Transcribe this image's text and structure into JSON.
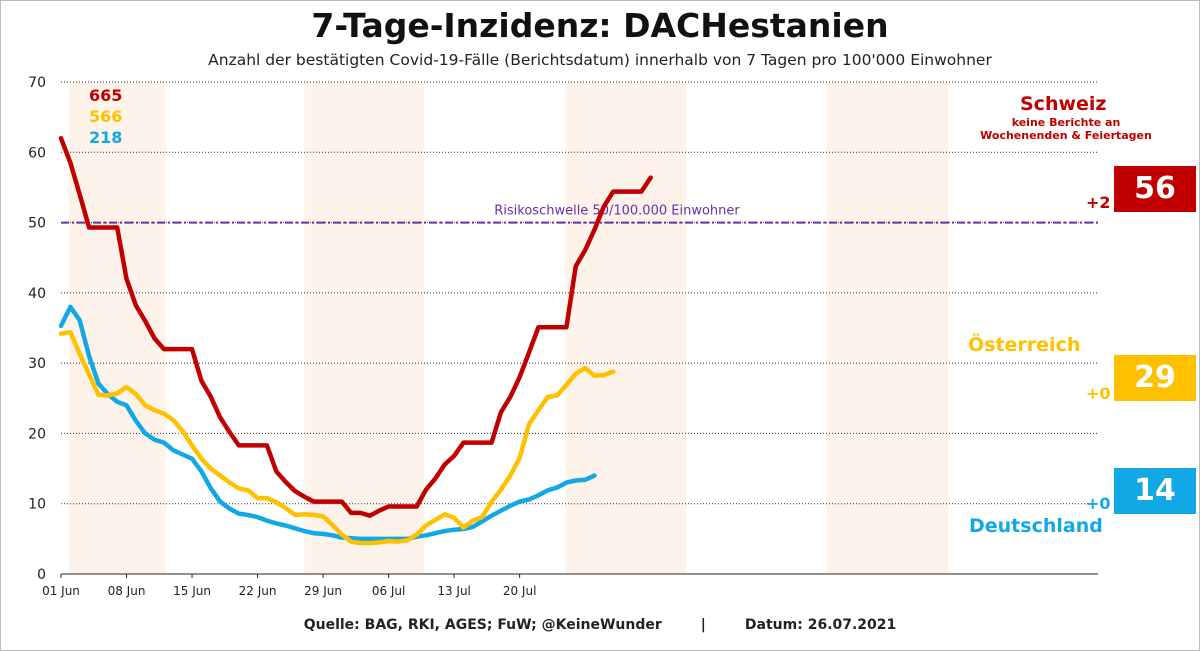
{
  "chart_data": {
    "type": "line",
    "title": "7-Tage-Inzidenz: DACHestanien",
    "subtitle": "Anzahl der bestätigten Covid-19-Fälle (Berichtsdatum) innerhalb von 7 Tagen pro 100'000 Einwohner",
    "ylim": [
      0,
      70
    ],
    "yticks": [
      0,
      10,
      20,
      30,
      40,
      50,
      60,
      70
    ],
    "xtick_labels": [
      "01 Jun",
      "08 Jun",
      "15 Jun",
      "22 Jun",
      "29 Jun",
      "06 Jul",
      "13 Jul",
      "20 Jul"
    ],
    "grid": "horizontal dotted",
    "threshold": {
      "value": 50,
      "label": "Risikoschwelle 50/100.000 Einwohner",
      "color": "#6a2fa8"
    },
    "weekend_shading": true,
    "series": [
      {
        "name": "Schweiz",
        "color": "#c00000",
        "peak": "665",
        "current": "56",
        "change": "+2",
        "note": [
          "keine Berichte an",
          "Wochenenden & Feiertagen"
        ],
        "values": [
          62,
          58.5,
          54,
          49.3,
          49.3,
          49.3,
          49.3,
          42,
          38.2,
          36,
          33.5,
          32,
          32,
          32,
          32,
          27.5,
          25.2,
          22.3,
          20.2,
          18.3,
          18.3,
          18.3,
          18.3,
          14.6,
          13.1,
          11.8,
          11,
          10.3,
          10.3,
          10.3,
          10.3,
          8.7,
          8.7,
          8.3,
          9,
          9.6,
          9.6,
          9.6,
          9.6,
          12,
          13.6,
          15.6,
          16.8,
          18.7,
          18.7,
          18.7,
          18.7,
          23,
          25.2,
          28,
          31.5,
          35.1,
          35.1,
          35.1,
          35.1,
          43.8,
          46.1,
          49,
          52.3,
          54.4,
          54.4,
          54.4,
          54.4,
          56.4
        ]
      },
      {
        "name": "Österreich",
        "color": "#ffc000",
        "peak": "566",
        "current": "29",
        "change": "+0",
        "values": [
          34.2,
          34.4,
          31.3,
          28.4,
          25.5,
          25.4,
          25.7,
          26.6,
          25.6,
          24,
          23.3,
          22.8,
          21.9,
          20.3,
          18.3,
          16.4,
          15,
          14,
          13,
          12.2,
          11.9,
          10.8,
          10.8,
          10.2,
          9.4,
          8.4,
          8.5,
          8.4,
          8.2,
          7,
          5.6,
          4.6,
          4.4,
          4.4,
          4.5,
          4.7,
          4.6,
          4.8,
          5.6,
          6.9,
          7.7,
          8.5,
          8,
          6.6,
          7.6,
          8.1,
          10.3,
          12,
          14,
          16.5,
          21.3,
          23.3,
          25.2,
          25.4,
          26.9,
          28.5,
          29.3,
          28.2,
          28.3,
          28.8
        ]
      },
      {
        "name": "Deutschland",
        "color": "#12a8e6",
        "peak": "218",
        "current": "14",
        "change": "+0",
        "values": [
          35.3,
          38,
          36.1,
          31,
          27.1,
          25.6,
          24.5,
          24,
          21.8,
          20,
          19.1,
          18.7,
          17.6,
          17,
          16.4,
          14.6,
          12.2,
          10.3,
          9.3,
          8.6,
          8.4,
          8.1,
          7.6,
          7.2,
          6.9,
          6.5,
          6.1,
          5.8,
          5.7,
          5.5,
          5.2,
          5.1,
          5,
          5,
          5,
          5,
          5,
          5,
          5.3,
          5.5,
          5.8,
          6.1,
          6.3,
          6.4,
          6.7,
          7.5,
          8.3,
          9,
          9.7,
          10.3,
          10.6,
          11.2,
          11.9,
          12.3,
          13,
          13.3,
          13.4,
          14
        ]
      }
    ]
  },
  "footer": {
    "source": "Quelle: BAG, RKI, AGES; FuW; @KeineWunder",
    "separator": "|",
    "date": "Datum: 26.07.2021"
  }
}
